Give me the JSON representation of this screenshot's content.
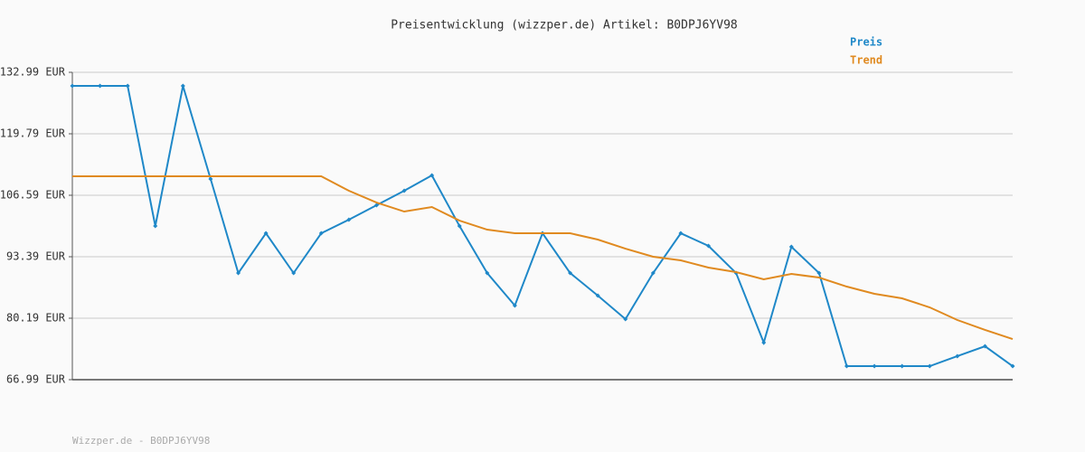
{
  "chart_data": {
    "type": "line",
    "title": "Preisentwicklung (wizzper.de) Artikel: B0DPJ6YV98",
    "categories": [
      null,
      null,
      null,
      null,
      null,
      null,
      null,
      null,
      null,
      null,
      null,
      null,
      null,
      null,
      null,
      null,
      null,
      null,
      null,
      null,
      null,
      null,
      null,
      null,
      null,
      null,
      null,
      null,
      null,
      null,
      null,
      null,
      null,
      null,
      null
    ],
    "series": [
      {
        "name": "Preis",
        "color": "#1f88c8",
        "values": [
          130.07,
          130.07,
          130.07,
          99.99,
          130.07,
          110.08,
          89.89,
          98.43,
          89.89,
          98.43,
          101.35,
          104.45,
          107.56,
          110.86,
          99.99,
          89.89,
          82.91,
          98.43,
          89.89,
          85.04,
          79.99,
          89.89,
          98.43,
          95.72,
          89.89,
          74.95,
          95.52,
          89.89,
          69.9,
          69.9,
          69.9,
          69.9,
          72.04,
          74.17,
          69.9
        ]
      },
      {
        "name": "Trend",
        "color": "#e08a20",
        "values": [
          110.66,
          110.66,
          110.66,
          110.66,
          110.66,
          110.66,
          110.66,
          110.66,
          110.66,
          110.66,
          107.56,
          105.03,
          103.09,
          104.06,
          101.15,
          99.21,
          98.43,
          98.43,
          98.43,
          97.08,
          95.13,
          93.39,
          92.61,
          91.06,
          90.09,
          88.54,
          89.7,
          88.92,
          86.98,
          85.43,
          84.46,
          82.52,
          79.8,
          77.67,
          75.72
        ]
      }
    ],
    "ylim": [
      66.99,
      132.99
    ],
    "yticks": [
      {
        "value": 66.99,
        "label": "66.99 EUR"
      },
      {
        "value": 80.19,
        "label": "80.19 EUR"
      },
      {
        "value": 93.39,
        "label": "93.39 EUR"
      },
      {
        "value": 106.59,
        "label": "106.59 EUR"
      },
      {
        "value": 119.79,
        "label": "119.79 EUR"
      },
      {
        "value": 132.99,
        "label": "132.99 EUR"
      }
    ],
    "grid": true
  },
  "footer": "Wizzper.de - B0DPJ6YV98"
}
